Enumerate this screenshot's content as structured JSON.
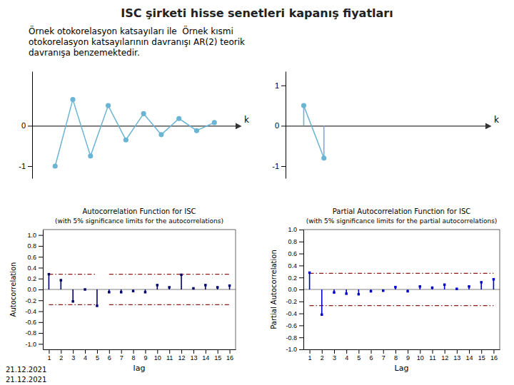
{
  "title": "ISC şirketi hisse senetleri kapanış fiyatları",
  "subtitle": "Örnek otokorelasyon katsayıları ile  Örnek kısmi\notokorelasyon katsayılarının davranışı AR(2) teorik\ndavranışa benzemektedir.",
  "annotations": [
    "21.12.2021",
    "21.12.2021"
  ],
  "chart_data": [
    {
      "type": "line",
      "marker": "circle",
      "color": "#6ab4d4",
      "x": [
        1,
        2,
        3,
        4,
        5,
        6,
        7,
        8,
        9,
        10
      ],
      "values": [
        -1.0,
        0.65,
        -0.75,
        0.5,
        -0.35,
        0.3,
        -0.22,
        0.18,
        -0.12,
        0.08
      ],
      "xlim": [
        -0.3,
        11.2
      ],
      "ylim": [
        -1.3,
        1.35
      ],
      "yticks": [
        -1,
        0
      ],
      "x_label": "k",
      "tick_labels": "y"
    },
    {
      "type": "stem",
      "marker": "circle",
      "line_style": "solid",
      "color": "#6ab4d4",
      "x": [
        1,
        2
      ],
      "values": [
        0.5,
        -0.8
      ],
      "xlim": [
        0.1,
        10.0
      ],
      "ylim": [
        -1.3,
        1.35
      ],
      "yticks": [
        -1,
        0,
        1
      ],
      "x_label": "k",
      "tick_labels": "y"
    },
    {
      "type": "stem",
      "marker": "square",
      "color": "#00006e",
      "title": "Autocorrelation Function for ISC",
      "subtitle": "(with 5% significance limits for the autocorrelations)",
      "x_label": "lag",
      "y_label": "Autocorrelation",
      "x": [
        1,
        2,
        3,
        4,
        5,
        6,
        7,
        8,
        9,
        10,
        11,
        12,
        13,
        14,
        15,
        16
      ],
      "values": [
        0.28,
        0.17,
        -0.22,
        0.0,
        -0.3,
        -0.05,
        -0.05,
        -0.03,
        -0.05,
        0.08,
        0.04,
        0.27,
        0.02,
        0.08,
        0.04,
        0.07
      ],
      "xlim": [
        0.5,
        16.5
      ],
      "xticks": [
        1,
        2,
        3,
        4,
        5,
        6,
        7,
        8,
        9,
        10,
        11,
        12,
        13,
        14,
        15,
        16
      ],
      "ylim": [
        -1.1,
        1.1
      ],
      "yticks": [
        {
          "value": -1.0,
          "label": "-1.0"
        },
        -0.8,
        -0.6,
        -0.4,
        -0.2,
        {
          "value": 0.0,
          "label": "0.0"
        },
        0.2,
        0.4,
        0.6,
        0.8,
        {
          "value": 1.0,
          "label": "1.0"
        }
      ],
      "limits": {
        "color": "#8b1a1a",
        "line_style": "dashdot",
        "segments": [
          {
            "x_start": 1,
            "x_end": 5,
            "value": 0.28
          },
          {
            "x_start": 6,
            "x_end": 16,
            "value": 0.28
          },
          {
            "x_start": 1,
            "x_end": 5,
            "value": -0.28
          },
          {
            "x_start": 6,
            "x_end": 16,
            "value": -0.28
          }
        ]
      }
    },
    {
      "type": "stem",
      "marker": "square",
      "color": "#0000cd",
      "title": "Partial Autocorrelation Function for ISC",
      "subtitle": "(with 5% significance limits for the partial autocorrelations)",
      "x_label": "Lag",
      "y_label": "Partial Autocorrelation",
      "x": [
        1,
        2,
        3,
        4,
        5,
        6,
        7,
        8,
        9,
        10,
        11,
        12,
        13,
        14,
        15,
        16
      ],
      "values": [
        0.28,
        -0.42,
        -0.05,
        -0.07,
        -0.08,
        -0.03,
        -0.02,
        0.04,
        -0.03,
        0.05,
        0.03,
        0.08,
        0.01,
        0.05,
        0.12,
        0.17
      ],
      "xlim": [
        0.5,
        16.5
      ],
      "xticks": [
        1,
        2,
        3,
        4,
        5,
        6,
        7,
        8,
        9,
        10,
        11,
        12,
        13,
        14,
        15,
        16
      ],
      "ylim": [
        -1.0,
        1.0
      ],
      "yticks": [
        {
          "value": -1.0,
          "label": "-1.0"
        },
        -0.8,
        -0.6,
        -0.4,
        -0.2,
        {
          "value": 0.0,
          "label": "0.0"
        },
        0.2,
        0.4,
        0.6,
        0.8,
        {
          "value": 1.0,
          "label": "1.0"
        }
      ],
      "limits": {
        "color": "#8b1a1a",
        "line_style": "dashdot",
        "segments": [
          {
            "x_start": 1,
            "x_end": 16,
            "value": 0.27
          },
          {
            "x_start": 1,
            "x_end": 16,
            "value": -0.27
          }
        ]
      }
    }
  ]
}
